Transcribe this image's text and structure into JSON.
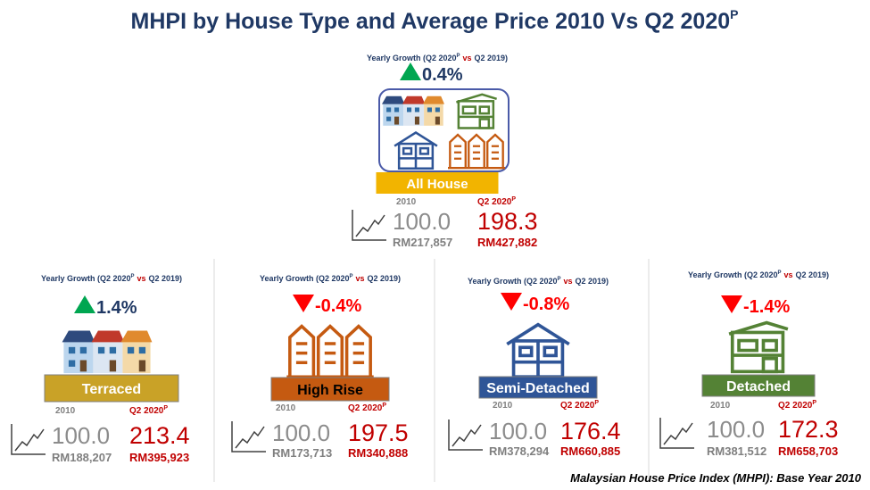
{
  "title": {
    "text": "MHPI by House Type and Average Price 2010 Vs Q2 2020",
    "sup": "P"
  },
  "growth_label": {
    "pre": "Yearly Growth (Q2 2020",
    "sup": "P",
    "mid": "vs",
    "post": "Q2 2019)"
  },
  "base_label": "2010",
  "current_label": {
    "text": "Q2 2020",
    "sup": "P"
  },
  "panels": [
    {
      "name": "All House",
      "growth": "0.4%",
      "base_index": "100.0",
      "base_price": "RM217,857",
      "current_index": "198.3",
      "current_price": "RM427,882",
      "color": "#f2b400",
      "text_color": "#ffffff"
    },
    {
      "name": "Terraced",
      "growth": "1.4%",
      "base_index": "100.0",
      "base_price": "RM188,207",
      "current_index": "213.4",
      "current_price": "RM395,923",
      "color": "#c9a227",
      "text_color": "#ffffff"
    },
    {
      "name": "High Rise",
      "growth": "-0.4%",
      "base_index": "100.0",
      "base_price": "RM173,713",
      "current_index": "197.5",
      "current_price": "RM340,888",
      "color": "#c55a11",
      "text_color": "#000000"
    },
    {
      "name": "Semi-Detached",
      "growth": "-0.8%",
      "base_index": "100.0",
      "base_price": "RM378,294",
      "current_index": "176.4",
      "current_price": "RM660,885",
      "color": "#2f5597",
      "text_color": "#ffffff"
    },
    {
      "name": "Detached",
      "growth": "-1.4%",
      "base_index": "100.0",
      "base_price": "RM381,512",
      "current_index": "172.3",
      "current_price": "RM658,703",
      "color": "#548235",
      "text_color": "#ffffff"
    }
  ],
  "footer": "Malaysian House Price Index (MHPI): Base Year 2010"
}
